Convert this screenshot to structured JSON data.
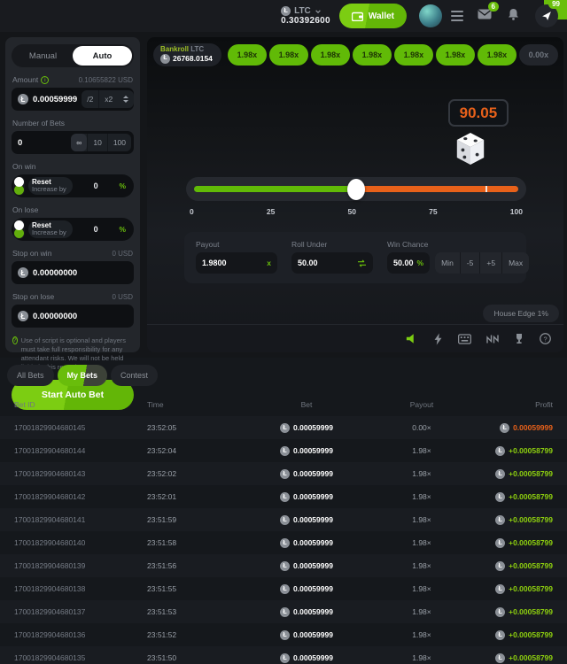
{
  "theme": {
    "accent_green": "#6abf0b",
    "accent_orange": "#e8611a",
    "win_green": "#8ed00f"
  },
  "header": {
    "currency_code": "LTC",
    "balance": "0.30392600",
    "wallet_label": "Wallet",
    "mail_badge": "6",
    "chat_badge": "99"
  },
  "bet_panel": {
    "tabs": {
      "manual": "Manual",
      "auto": "Auto"
    },
    "amount": {
      "label": "Amount",
      "usd": "0.10655822 USD",
      "value": "0.00059999",
      "half": "/2",
      "double": "x2"
    },
    "number_of_bets": {
      "label": "Number of Bets",
      "value": "0",
      "options": [
        "∞",
        "10",
        "100"
      ]
    },
    "on_win": {
      "label": "On win",
      "reset": "Reset",
      "increase": "Increase by",
      "value": "0",
      "unit": "%"
    },
    "on_lose": {
      "label": "On lose",
      "reset": "Reset",
      "increase": "Increase by",
      "value": "0",
      "unit": "%"
    },
    "stop_on_win": {
      "label": "Stop on win",
      "usd": "0 USD",
      "value": "0.00000000"
    },
    "stop_on_lose": {
      "label": "Stop on lose",
      "usd": "0 USD",
      "value": "0.00000000"
    },
    "note": "Use of script is optional and players must take full responsibility for any attendant risks. We will not be held liable in this regard.",
    "start_button": "Start Auto Bet"
  },
  "game": {
    "bankroll": {
      "label": "Bankroll",
      "currency": "LTC",
      "value": "26768.0154"
    },
    "multipliers": [
      "1.98x",
      "1.98x",
      "1.98x",
      "1.98x",
      "1.98x",
      "1.98x",
      "1.98x"
    ],
    "empty_multiplier": "0.00x",
    "result": "90.05",
    "slider": {
      "ticks": [
        "0",
        "25",
        "50",
        "75",
        "100"
      ],
      "value_percent": 50,
      "result_percent": 90
    },
    "controls": {
      "payout": {
        "label": "Payout",
        "value": "1.9800",
        "suffix": "x"
      },
      "roll_under": {
        "label": "Roll Under",
        "value": "50.00"
      },
      "win_chance": {
        "label": "Win Chance",
        "value": "50.00",
        "suffix": "%",
        "buttons": [
          "Min",
          "-5",
          "+5",
          "Max"
        ]
      }
    },
    "house_edge": "House Edge 1%"
  },
  "bets": {
    "tabs": [
      {
        "label": "All Bets",
        "active": false
      },
      {
        "label": "My Bets",
        "active": true
      },
      {
        "label": "Contest",
        "active": false
      }
    ],
    "columns": [
      "Bet ID",
      "Time",
      "Bet",
      "Payout",
      "Profit"
    ],
    "rows": [
      {
        "id": "17001829904680145",
        "time": "23:52:05",
        "bet": "0.00059999",
        "payout": "0.00×",
        "profit": "0.00059999",
        "win": false
      },
      {
        "id": "17001829904680144",
        "time": "23:52:04",
        "bet": "0.00059999",
        "payout": "1.98×",
        "profit": "+0.00058799",
        "win": true
      },
      {
        "id": "17001829904680143",
        "time": "23:52:02",
        "bet": "0.00059999",
        "payout": "1.98×",
        "profit": "+0.00058799",
        "win": true
      },
      {
        "id": "17001829904680142",
        "time": "23:52:01",
        "bet": "0.00059999",
        "payout": "1.98×",
        "profit": "+0.00058799",
        "win": true
      },
      {
        "id": "17001829904680141",
        "time": "23:51:59",
        "bet": "0.00059999",
        "payout": "1.98×",
        "profit": "+0.00058799",
        "win": true
      },
      {
        "id": "17001829904680140",
        "time": "23:51:58",
        "bet": "0.00059999",
        "payout": "1.98×",
        "profit": "+0.00058799",
        "win": true
      },
      {
        "id": "17001829904680139",
        "time": "23:51:56",
        "bet": "0.00059999",
        "payout": "1.98×",
        "profit": "+0.00058799",
        "win": true
      },
      {
        "id": "17001829904680138",
        "time": "23:51:55",
        "bet": "0.00059999",
        "payout": "1.98×",
        "profit": "+0.00058799",
        "win": true
      },
      {
        "id": "17001829904680137",
        "time": "23:51:53",
        "bet": "0.00059999",
        "payout": "1.98×",
        "profit": "+0.00058799",
        "win": true
      },
      {
        "id": "17001829904680136",
        "time": "23:51:52",
        "bet": "0.00059999",
        "payout": "1.98×",
        "profit": "+0.00058799",
        "win": true
      },
      {
        "id": "17001829904680135",
        "time": "23:51:50",
        "bet": "0.00059999",
        "payout": "1.98×",
        "profit": "+0.00058799",
        "win": true
      }
    ]
  }
}
